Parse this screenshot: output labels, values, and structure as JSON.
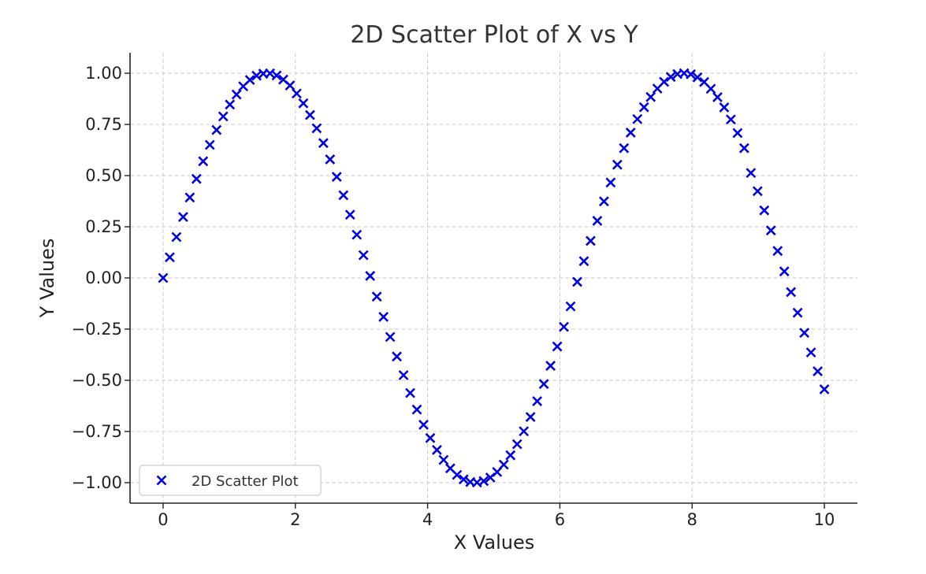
{
  "chart_data": {
    "type": "scatter",
    "title": "2D Scatter Plot of X vs Y",
    "xlabel": "X Values",
    "ylabel": "Y Values",
    "xlim": [
      -0.5,
      10.5
    ],
    "ylim": [
      -1.1,
      1.1
    ],
    "x_ticks": [
      0,
      2,
      4,
      6,
      8,
      10
    ],
    "x_tick_labels": [
      "0",
      "2",
      "4",
      "6",
      "8",
      "10"
    ],
    "y_ticks": [
      -1.0,
      -0.75,
      -0.5,
      -0.25,
      0.0,
      0.25,
      0.5,
      0.75,
      1.0
    ],
    "y_tick_labels": [
      "−1.00",
      "−0.75",
      "−0.50",
      "−0.25",
      "0.00",
      "0.25",
      "0.50",
      "0.75",
      "1.00"
    ],
    "grid": true,
    "legend_position": "lower-left",
    "marker": "x",
    "color": "#0000dd",
    "series": [
      {
        "name": "2D Scatter Plot",
        "x": [
          0.0,
          0.101,
          0.202,
          0.303,
          0.404,
          0.505,
          0.606,
          0.707,
          0.808,
          0.909,
          1.01,
          1.111,
          1.212,
          1.313,
          1.414,
          1.515,
          1.616,
          1.717,
          1.818,
          1.919,
          2.02,
          2.121,
          2.222,
          2.323,
          2.424,
          2.525,
          2.626,
          2.727,
          2.828,
          2.929,
          3.03,
          3.131,
          3.232,
          3.333,
          3.434,
          3.535,
          3.636,
          3.737,
          3.838,
          3.939,
          4.04,
          4.141,
          4.242,
          4.343,
          4.444,
          4.545,
          4.646,
          4.747,
          4.848,
          4.949,
          5.051,
          5.152,
          5.253,
          5.354,
          5.455,
          5.556,
          5.657,
          5.758,
          5.859,
          5.96,
          6.061,
          6.162,
          6.263,
          6.364,
          6.465,
          6.566,
          6.667,
          6.768,
          6.869,
          6.97,
          7.071,
          7.172,
          7.273,
          7.374,
          7.475,
          7.576,
          7.677,
          7.778,
          7.879,
          7.98,
          8.081,
          8.182,
          8.283,
          8.384,
          8.485,
          8.586,
          8.687,
          8.788,
          8.889,
          8.99,
          9.091,
          9.192,
          9.293,
          9.394,
          9.495,
          9.596,
          9.697,
          9.798,
          9.899,
          10.0
        ],
        "y": [
          0.0,
          0.101,
          0.2,
          0.298,
          0.393,
          0.484,
          0.57,
          0.65,
          0.723,
          0.789,
          0.847,
          0.896,
          0.936,
          0.967,
          0.988,
          0.998,
          0.999,
          0.989,
          0.969,
          0.94,
          0.901,
          0.853,
          0.796,
          0.731,
          0.659,
          0.579,
          0.494,
          0.404,
          0.309,
          0.211,
          0.111,
          0.01,
          -0.091,
          -0.19,
          -0.288,
          -0.384,
          -0.475,
          -0.562,
          -0.643,
          -0.717,
          -0.782,
          -0.84,
          -0.889,
          -0.93,
          -0.962,
          -0.984,
          -0.997,
          -0.999,
          -0.992,
          -0.975,
          -0.948,
          -0.912,
          -0.866,
          -0.812,
          -0.749,
          -0.679,
          -0.602,
          -0.518,
          -0.429,
          -0.335,
          -0.239,
          -0.139,
          -0.019,
          0.082,
          0.181,
          0.279,
          0.374,
          0.466,
          0.553,
          0.634,
          0.71,
          0.776,
          0.834,
          0.884,
          0.925,
          0.958,
          0.982,
          0.996,
          1.0,
          0.995,
          0.98,
          0.957,
          0.924,
          0.883,
          0.833,
          0.774,
          0.708,
          0.634,
          0.513,
          0.424,
          0.33,
          0.232,
          0.132,
          0.032,
          -0.069,
          -0.17,
          -0.268,
          -0.364,
          -0.456,
          -0.544
        ]
      }
    ]
  }
}
